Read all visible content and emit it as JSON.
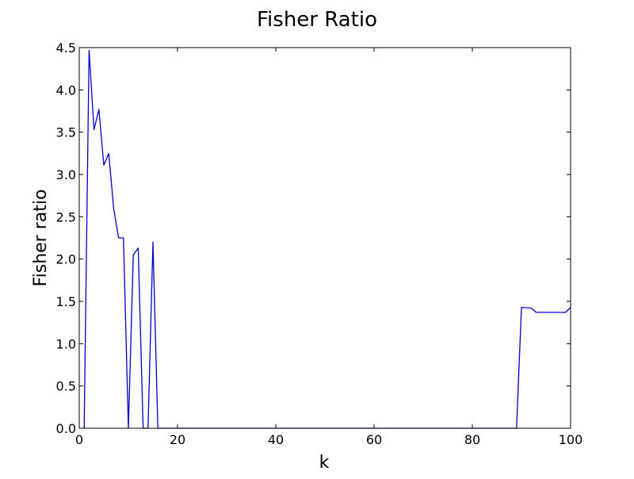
{
  "chart_data": {
    "type": "line",
    "title": "Fisher Ratio",
    "xlabel": "k",
    "ylabel": "Fisher ratio",
    "xlim": [
      0,
      100
    ],
    "ylim": [
      0,
      4.5
    ],
    "xticks": [
      "0",
      "20",
      "40",
      "60",
      "80",
      "100"
    ],
    "yticks": [
      "0.0",
      "0.5",
      "1.0",
      "1.5",
      "2.0",
      "2.5",
      "3.0",
      "3.5",
      "4.0",
      "4.5"
    ],
    "grid": false,
    "legend": "none",
    "line_color": "#0000cc",
    "x": [
      1,
      2,
      3,
      4,
      5,
      6,
      7,
      8,
      9,
      10,
      11,
      12,
      13,
      14,
      15,
      16,
      17,
      20,
      30,
      40,
      50,
      60,
      70,
      80,
      89,
      90,
      92,
      93,
      94,
      96,
      98,
      99,
      100
    ],
    "y": [
      0.0,
      4.47,
      3.53,
      3.77,
      3.11,
      3.25,
      2.6,
      2.25,
      2.25,
      0.0,
      2.05,
      2.13,
      0.0,
      0.0,
      2.2,
      0.0,
      0.0,
      0.0,
      0.0,
      0.0,
      0.0,
      0.0,
      0.0,
      0.0,
      0.0,
      1.43,
      1.42,
      1.37,
      1.37,
      1.37,
      1.37,
      1.37,
      1.43
    ]
  }
}
